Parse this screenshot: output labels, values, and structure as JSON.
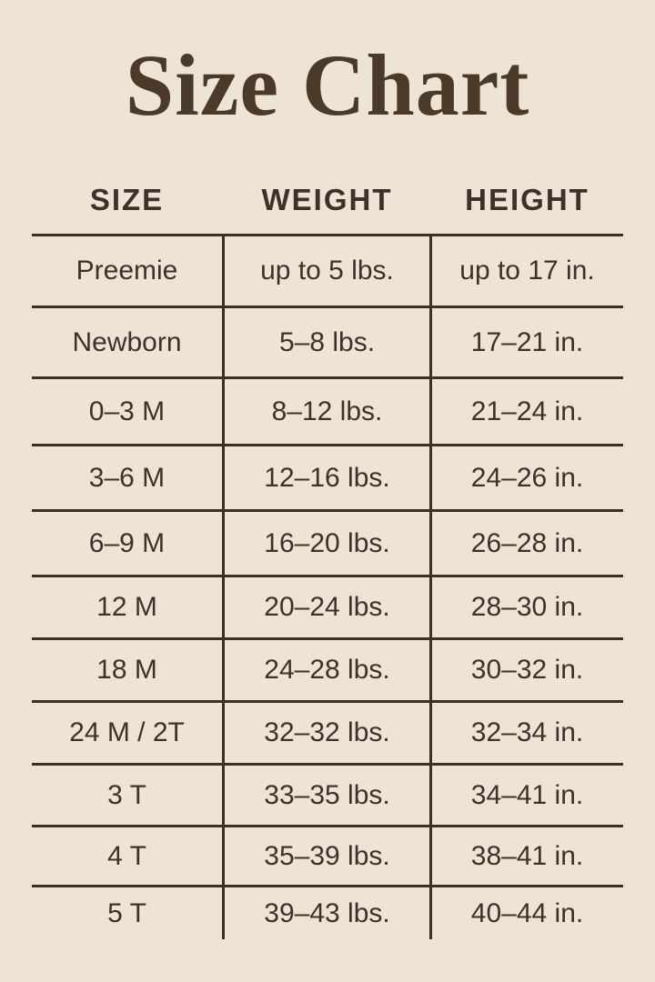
{
  "page": {
    "title": "Size Chart"
  },
  "colors": {
    "background": "#EDE4D6",
    "ink": "#3D3228",
    "title_ink": "#4A3A27",
    "rule_lines": "#3A3025"
  },
  "chart_data": {
    "type": "table",
    "title": "Size Chart",
    "columns": [
      "SIZE",
      "WEIGHT",
      "HEIGHT"
    ],
    "rows": [
      [
        "Preemie",
        "up to 5 lbs.",
        "up to 17 in."
      ],
      [
        "Newborn",
        "5–8 lbs.",
        "17–21 in."
      ],
      [
        "0–3 M",
        "8–12 lbs.",
        "21–24 in."
      ],
      [
        "3–6 M",
        "12–16 lbs.",
        "24–26 in."
      ],
      [
        "6–9 M",
        "16–20 lbs.",
        "26–28 in."
      ],
      [
        "12 M",
        "20–24 lbs.",
        "28–30 in."
      ],
      [
        "18 M",
        "24–28 lbs.",
        "30–32 in."
      ],
      [
        "24 M / 2T",
        "32–32 lbs.",
        "32–34 in."
      ],
      [
        "3 T",
        "33–35 lbs.",
        "34–41 in."
      ],
      [
        "4 T",
        "35–39 lbs.",
        "38–41 in."
      ],
      [
        "5 T",
        "39–43 lbs.",
        "40–44 in."
      ]
    ],
    "layout_hints": {
      "outer_border": false,
      "bottom_rule": false,
      "vertical_separators_between_columns": true,
      "horizontal_rules_between_rows": true
    }
  }
}
